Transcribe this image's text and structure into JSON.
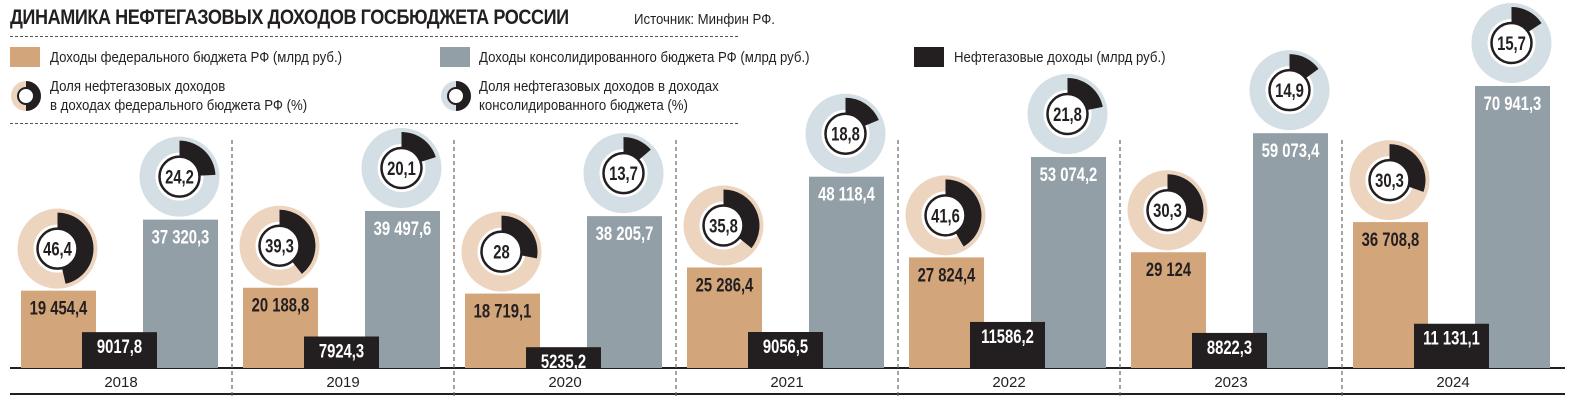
{
  "header": {
    "title": "ДИНАМИКА НЕФТЕГАЗОВЫХ ДОХОДОВ ГОСБЮДЖЕТА РОССИИ",
    "source": "Источник: Минфин РФ."
  },
  "legend": {
    "federal": "Доходы федерального бюджета РФ (млрд руб.)",
    "consolidated": "Доходы консолидированного бюджета РФ (млрд руб.)",
    "oilgas": "Нефтегазовые доходы (млрд руб.)",
    "share_federal_1": "Доля нефтегазовых доходов",
    "share_federal_2": "в доходах федерального бюджета РФ (%)",
    "share_cons_1": "Доля нефтегазовых доходов в доходах",
    "share_cons_2": "консолидированного бюджета (%)"
  },
  "colors": {
    "federal": "#d3a57b",
    "consolidated": "#939fa6",
    "oilgas": "#231f20",
    "federal_ring": "#ecd4bf",
    "cons_ring": "#d4dee5"
  },
  "chart_data": {
    "type": "bar",
    "title": "ДИНАМИКА НЕФТЕГАЗОВЫХ ДОХОДОВ ГОСБЮДЖЕТА РОССИИ",
    "xlabel": "",
    "ylabel": "млрд руб.",
    "categories": [
      "2018",
      "2019",
      "2020",
      "2021",
      "2022",
      "2023",
      "2024"
    ],
    "series": [
      {
        "name": "Доходы федерального бюджета РФ (млрд руб.)",
        "values": [
          19454.4,
          20188.8,
          18719.1,
          25286.4,
          27824.4,
          29124,
          36708.8
        ],
        "labels": [
          "19 454,4",
          "20 188,8",
          "18 719,1",
          "25 286,4",
          "27 824,4",
          "29 124",
          "36 708,8"
        ]
      },
      {
        "name": "Нефтегазовые доходы (млрд руб.)",
        "values": [
          9017.8,
          7924.3,
          5235.2,
          9056.5,
          11586.2,
          8822.3,
          11131.1
        ],
        "labels": [
          "9017,8",
          "7924,3",
          "5235,2",
          "9056,5",
          "11586,2",
          "8822,3",
          "11 131,1"
        ]
      },
      {
        "name": "Доходы консолидированного бюджета РФ (млрд руб.)",
        "values": [
          37320.3,
          39497.6,
          38205.7,
          48118.4,
          53074.2,
          59073.4,
          70941.3
        ],
        "labels": [
          "37 320,3",
          "39 497,6",
          "38 205,7",
          "48 118,4",
          "53 074,2",
          "59 073,4",
          "70 941,3"
        ]
      }
    ],
    "shares": [
      {
        "name": "Доля нефтегазовых доходов в доходах федерального бюджета РФ (%)",
        "values": [
          46.4,
          39.3,
          28,
          35.8,
          41.6,
          30.3,
          30.3
        ],
        "labels": [
          "46,4",
          "39,3",
          "28",
          "35,8",
          "41,6",
          "30,3",
          "30,3"
        ]
      },
      {
        "name": "Доля нефтегазовых доходов в доходах консолидированного бюджета (%)",
        "values": [
          24.2,
          20.1,
          13.7,
          18.8,
          21.8,
          14.9,
          15.7
        ],
        "labels": [
          "24,2",
          "20,1",
          "13,7",
          "18,8",
          "21,8",
          "14,9",
          "15,7"
        ]
      }
    ],
    "ylim": [
      0,
      71000
    ],
    "grid": false,
    "legend_position": "top-left"
  }
}
